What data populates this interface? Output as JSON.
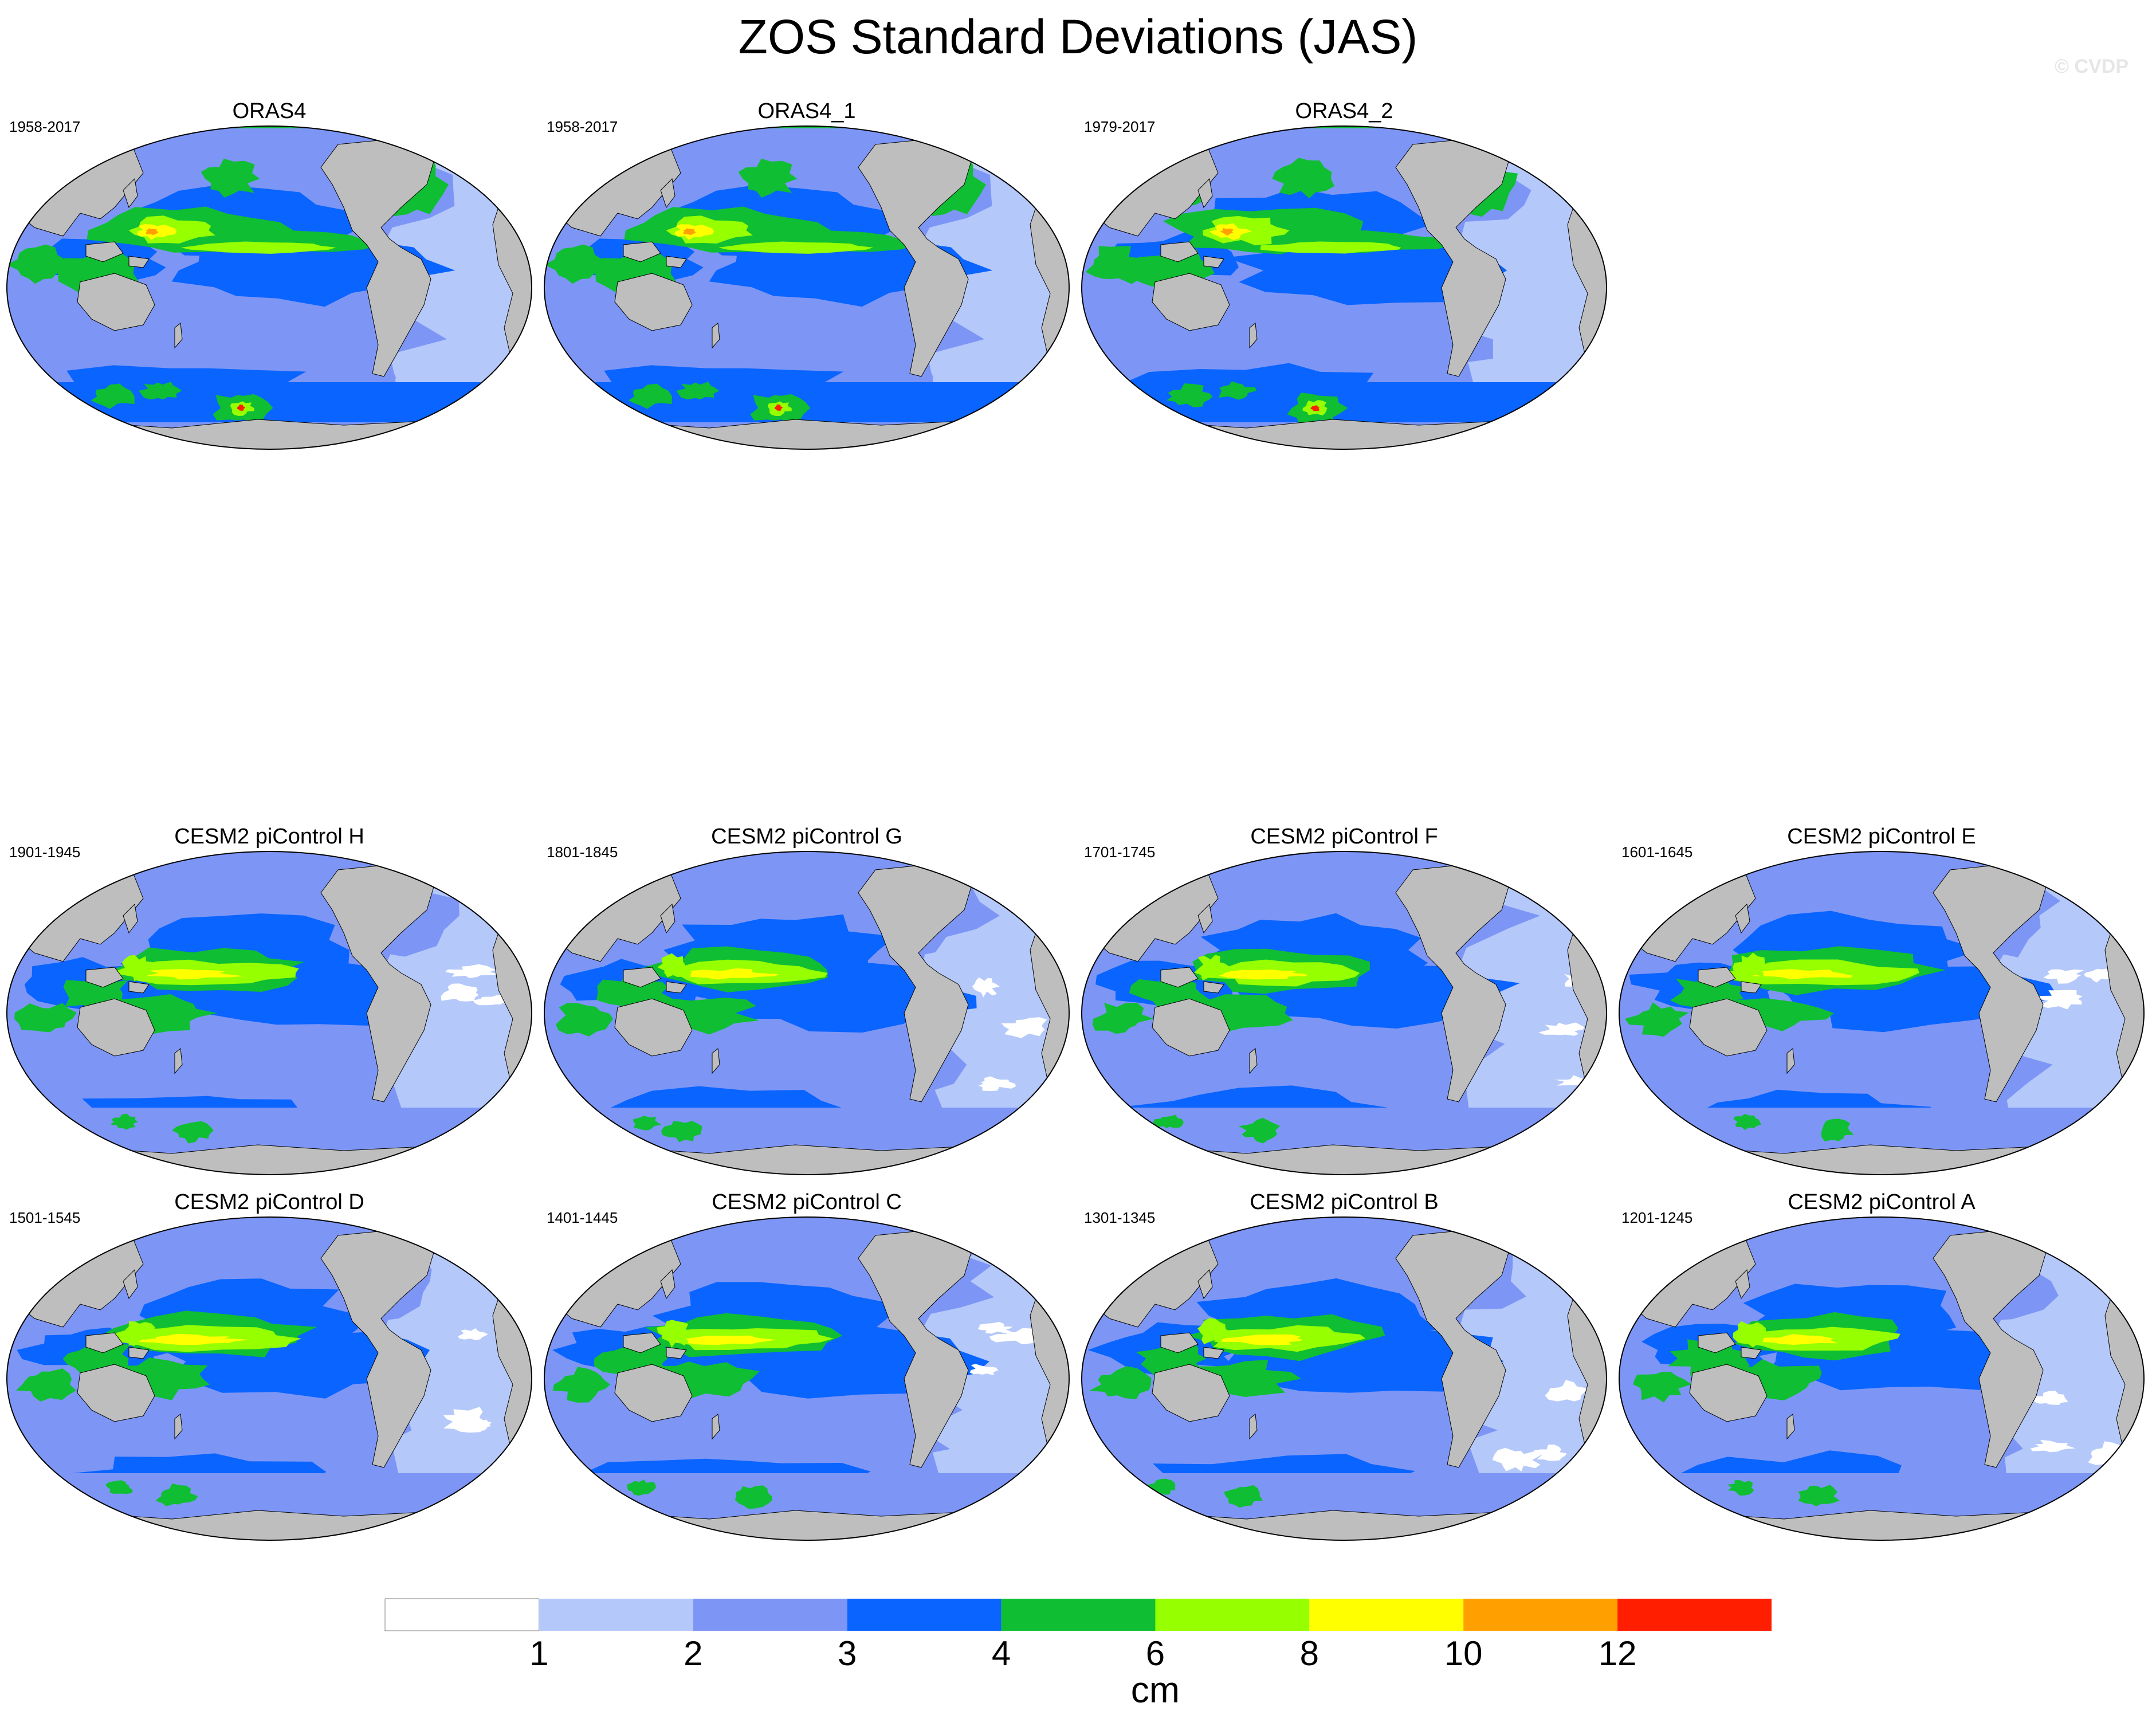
{
  "title": "ZOS Standard Deviations (JAS)",
  "watermark": "© CVDP",
  "panels": [
    {
      "title": "ORAS4",
      "years": "1958-2017",
      "variant": "obs",
      "seed": 1
    },
    {
      "title": "ORAS4_1",
      "years": "1958-2017",
      "variant": "obs",
      "seed": 1
    },
    {
      "title": "ORAS4_2",
      "years": "1979-2017",
      "variant": "obs",
      "seed": 2
    },
    {
      "title": "CESM2 piControl H",
      "years": "1901-1945",
      "variant": "model",
      "seed": 3
    },
    {
      "title": "CESM2 piControl G",
      "years": "1801-1845",
      "variant": "model",
      "seed": 4
    },
    {
      "title": "CESM2 piControl F",
      "years": "1701-1745",
      "variant": "model",
      "seed": 5
    },
    {
      "title": "CESM2 piControl E",
      "years": "1601-1645",
      "variant": "model",
      "seed": 6
    },
    {
      "title": "CESM2 piControl D",
      "years": "1501-1545",
      "variant": "model",
      "seed": 7
    },
    {
      "title": "CESM2 piControl C",
      "years": "1401-1445",
      "variant": "model",
      "seed": 8
    },
    {
      "title": "CESM2 piControl B",
      "years": "1301-1345",
      "variant": "model",
      "seed": 9
    },
    {
      "title": "CESM2 piControl A",
      "years": "1201-1245",
      "variant": "model",
      "seed": 10
    }
  ],
  "colorbar": {
    "unit": "cm",
    "levels": [
      "1",
      "2",
      "3",
      "4",
      "6",
      "8",
      "10",
      "12"
    ],
    "colors": [
      "#ffffff",
      "#b4c8fa",
      "#7d96f5",
      "#0a64ff",
      "#0fbe32",
      "#96ff00",
      "#ffff00",
      "#ffa000",
      "#ff1e00"
    ]
  },
  "land_color": "#bebebe"
}
